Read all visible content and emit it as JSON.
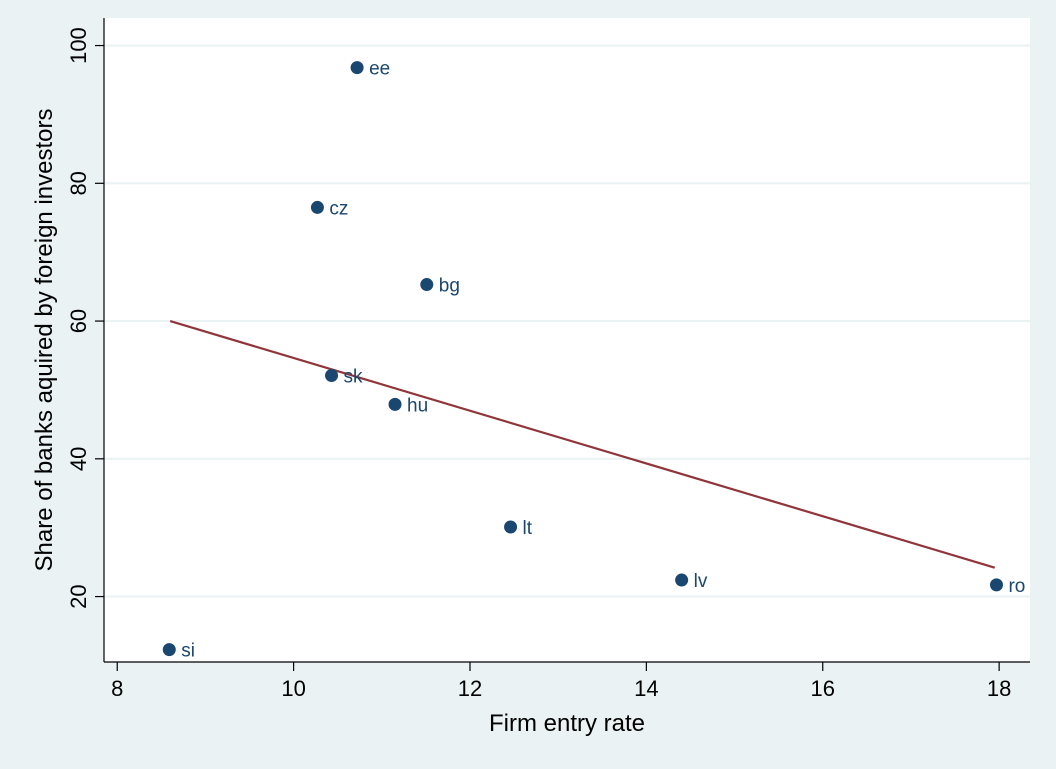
{
  "chart_data": {
    "type": "scatter",
    "xlabel": "Firm entry rate",
    "ylabel": "Share of banks aquired by foreign investors",
    "xlim": [
      7.85,
      18.35
    ],
    "ylim": [
      10.5,
      104
    ],
    "xticks": [
      8,
      10,
      12,
      14,
      16,
      18
    ],
    "yticks": [
      20,
      40,
      60,
      80,
      100
    ],
    "grid": "horizontal",
    "points": [
      {
        "label": "ee",
        "x": 10.72,
        "y": 96.8
      },
      {
        "label": "cz",
        "x": 10.27,
        "y": 76.5
      },
      {
        "label": "bg",
        "x": 11.51,
        "y": 65.3
      },
      {
        "label": "sk",
        "x": 10.43,
        "y": 52.1
      },
      {
        "label": "hu",
        "x": 11.15,
        "y": 47.9
      },
      {
        "label": "lt",
        "x": 12.46,
        "y": 30.1
      },
      {
        "label": "lv",
        "x": 14.4,
        "y": 22.4
      },
      {
        "label": "ro",
        "x": 17.97,
        "y": 21.7
      },
      {
        "label": "si",
        "x": 8.59,
        "y": 12.3
      }
    ],
    "fit_line": {
      "x": [
        8.6,
        17.95
      ],
      "y": [
        60.0,
        24.2
      ]
    },
    "colors": {
      "background": "#eaf2f3",
      "plot_area": "#ffffff",
      "point": "#1a476f",
      "fit_line": "#90353b",
      "grid": "#eaf2f3"
    }
  }
}
